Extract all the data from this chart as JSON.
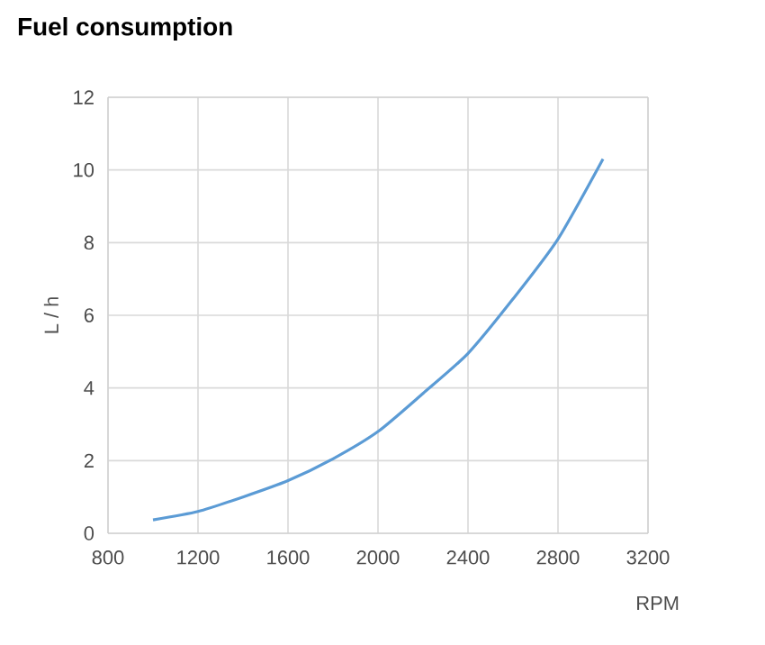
{
  "chart_data": {
    "type": "line",
    "title": "Fuel consumption",
    "xlabel": "RPM",
    "ylabel": "L / h",
    "x": [
      1000,
      1200,
      1400,
      1600,
      1800,
      2000,
      2200,
      2400,
      2600,
      2800,
      3000
    ],
    "series": [
      {
        "color": "#5b9bd5",
        "values": [
          0.37,
          0.6,
          1.0,
          1.45,
          2.05,
          2.8,
          3.85,
          4.95,
          6.45,
          8.1,
          10.3
        ]
      }
    ],
    "xlim": [
      800,
      3200
    ],
    "xticks": [
      800,
      1200,
      1600,
      2000,
      2400,
      2800,
      3200
    ],
    "ylim": [
      0,
      12
    ],
    "yticks": [
      0,
      2,
      4,
      6,
      8,
      10,
      12
    ],
    "grid": true,
    "marker": "none",
    "line_style": "solid"
  }
}
